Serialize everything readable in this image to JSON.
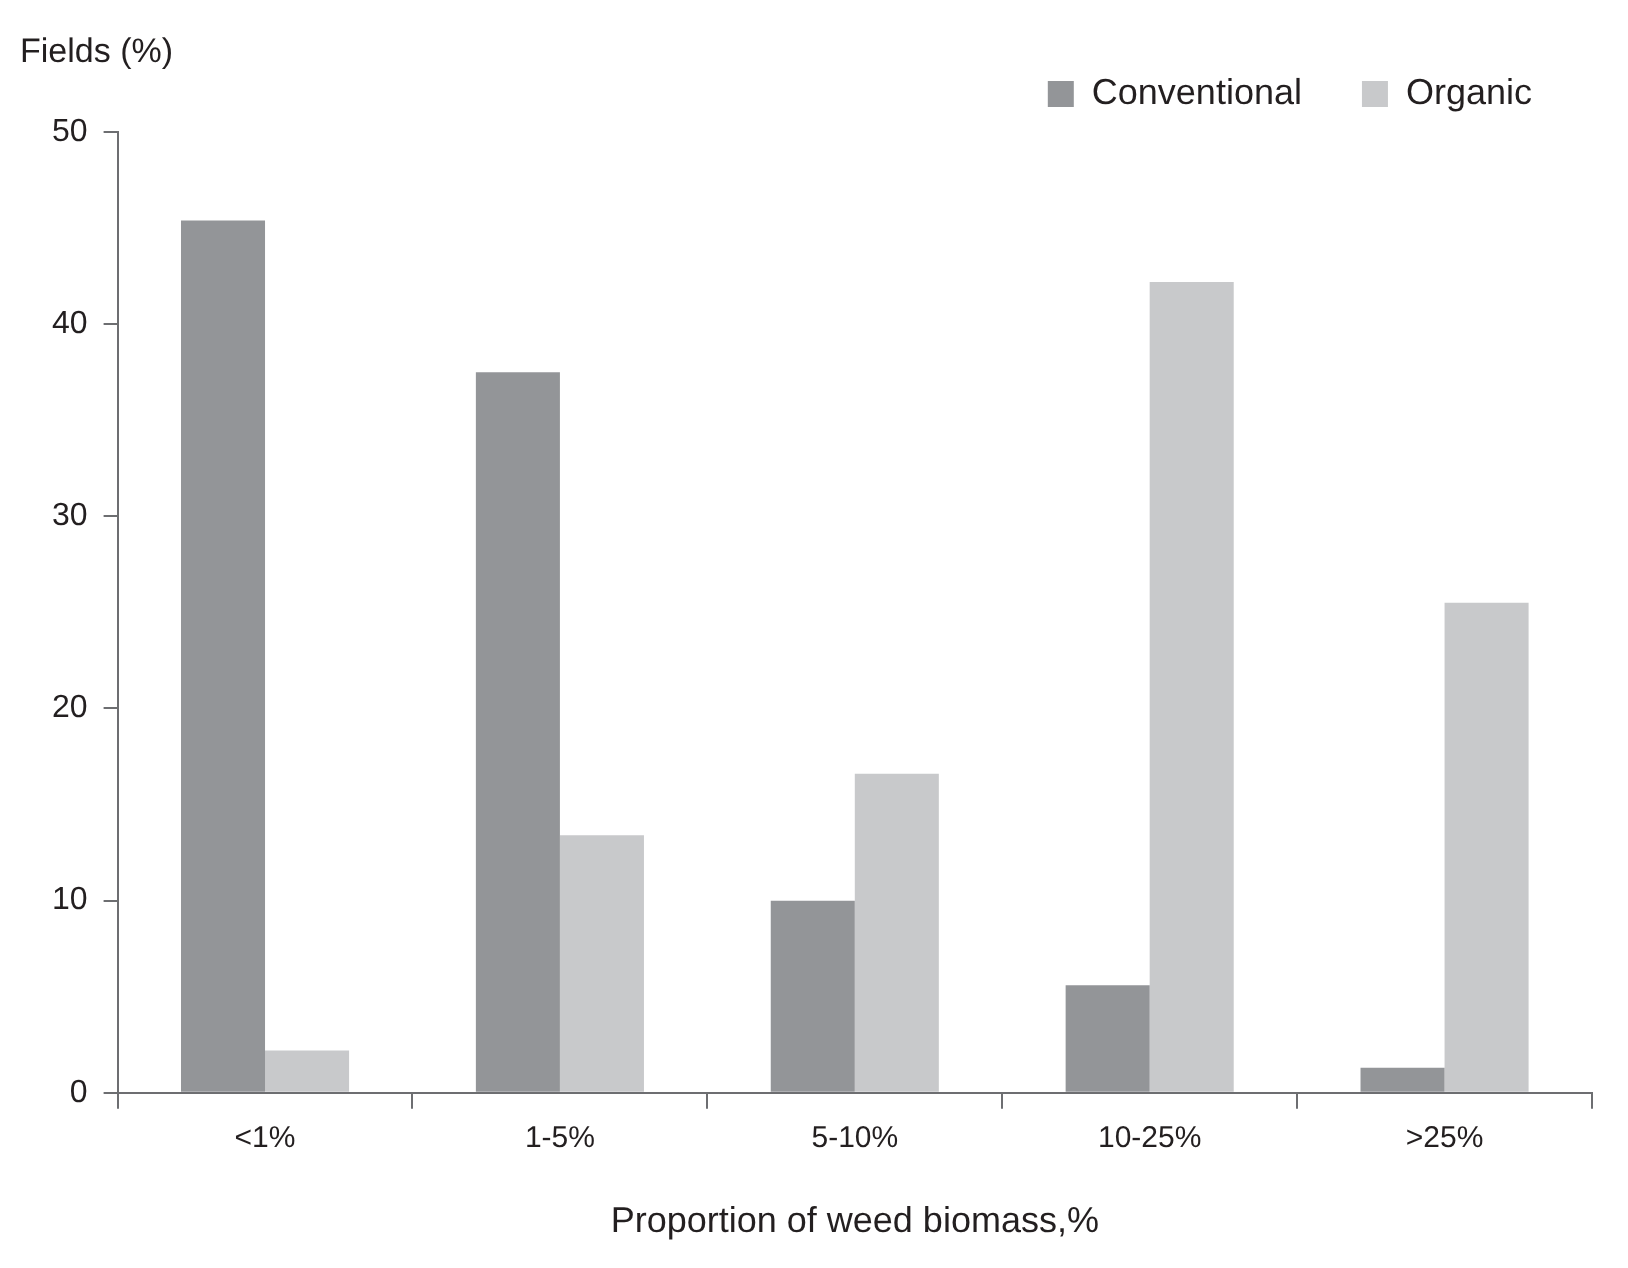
{
  "chart_data": {
    "type": "bar",
    "xlabel": "Proportion of weed biomass,%",
    "ylabel": "Fields (%)",
    "categories": [
      "<1%",
      "1-5%",
      "5-10%",
      "10-25%",
      ">25%"
    ],
    "series": [
      {
        "name": "Conventional",
        "color": "#939598",
        "values": [
          45.4,
          37.5,
          10.0,
          5.6,
          1.3
        ]
      },
      {
        "name": "Organic",
        "color": "#c8c9cb",
        "values": [
          2.2,
          13.4,
          16.6,
          42.2,
          25.5
        ]
      }
    ],
    "ylim": [
      0,
      50
    ],
    "yticks": [
      0,
      10,
      20,
      30,
      40,
      50
    ],
    "grid": false,
    "legend": "top right"
  }
}
